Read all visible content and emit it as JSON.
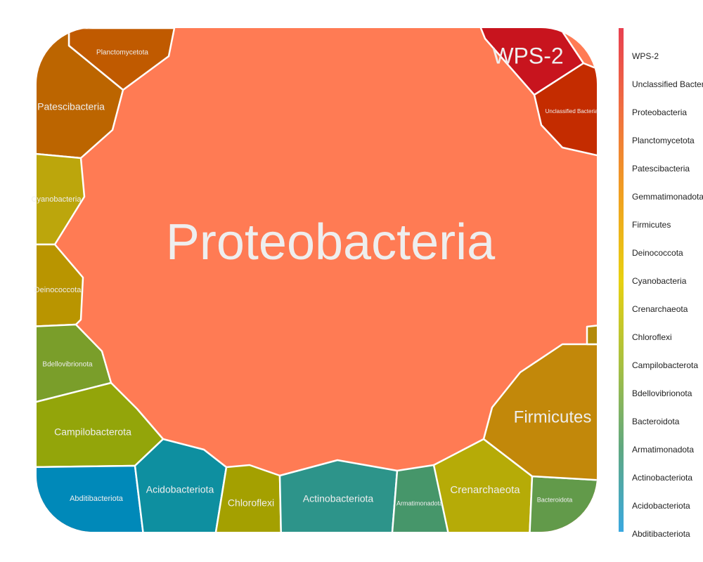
{
  "chart_data": {
    "type": "voronoi_treemap",
    "cells": [
      {
        "name": "Proteobacteria",
        "color": "#ff7b54"
      },
      {
        "name": "Planctomycetota",
        "color": "#c05a00"
      },
      {
        "name": "Patescibacteria",
        "color": "#bc6500"
      },
      {
        "name": "Cyanobacteria",
        "color": "#bca60c"
      },
      {
        "name": "Deinococcota",
        "color": "#b99500"
      },
      {
        "name": "Bdellovibrionota",
        "color": "#7a9e2a"
      },
      {
        "name": "Campilobacterota",
        "color": "#93a50a"
      },
      {
        "name": "Abditibacteriota",
        "color": "#0089b9"
      },
      {
        "name": "Acidobacteriota",
        "color": "#0e8fa0"
      },
      {
        "name": "Chloroflexi",
        "color": "#a4a000"
      },
      {
        "name": "Actinobacteriota",
        "color": "#2d948a"
      },
      {
        "name": "Armatimonadota",
        "color": "#46966a"
      },
      {
        "name": "Crenarchaeota",
        "color": "#b6ab07"
      },
      {
        "name": "Bacteroidota",
        "color": "#629a4a"
      },
      {
        "name": "Firmicutes",
        "color": "#c2880a"
      },
      {
        "name": null,
        "color": "#b38a0a"
      },
      {
        "name": "WPS-2",
        "color": "#c8141e"
      },
      {
        "name": "Unclassified Bacteria",
        "color": "#c42c00"
      }
    ],
    "legend": {
      "items": [
        "WPS-2",
        "Unclassified Bacteria",
        "Proteobacteria",
        "Planctomycetota",
        "Patescibacteria",
        "Gemmatimonadota",
        "Firmicutes",
        "Deinococcota",
        "Cyanobacteria",
        "Crenarchaeota",
        "Chloroflexi",
        "Campilobacterota",
        "Bdellovibrionota",
        "Bacteroidota",
        "Armatimonadota",
        "Actinobacteriota",
        "Acidobacteriota",
        "Abditibacteriota"
      ],
      "colors": [
        "#e84050",
        "#f07040",
        "#f0a020",
        "#e8d010",
        "#a8c040",
        "#60a880",
        "#3aa8e0"
      ]
    }
  }
}
